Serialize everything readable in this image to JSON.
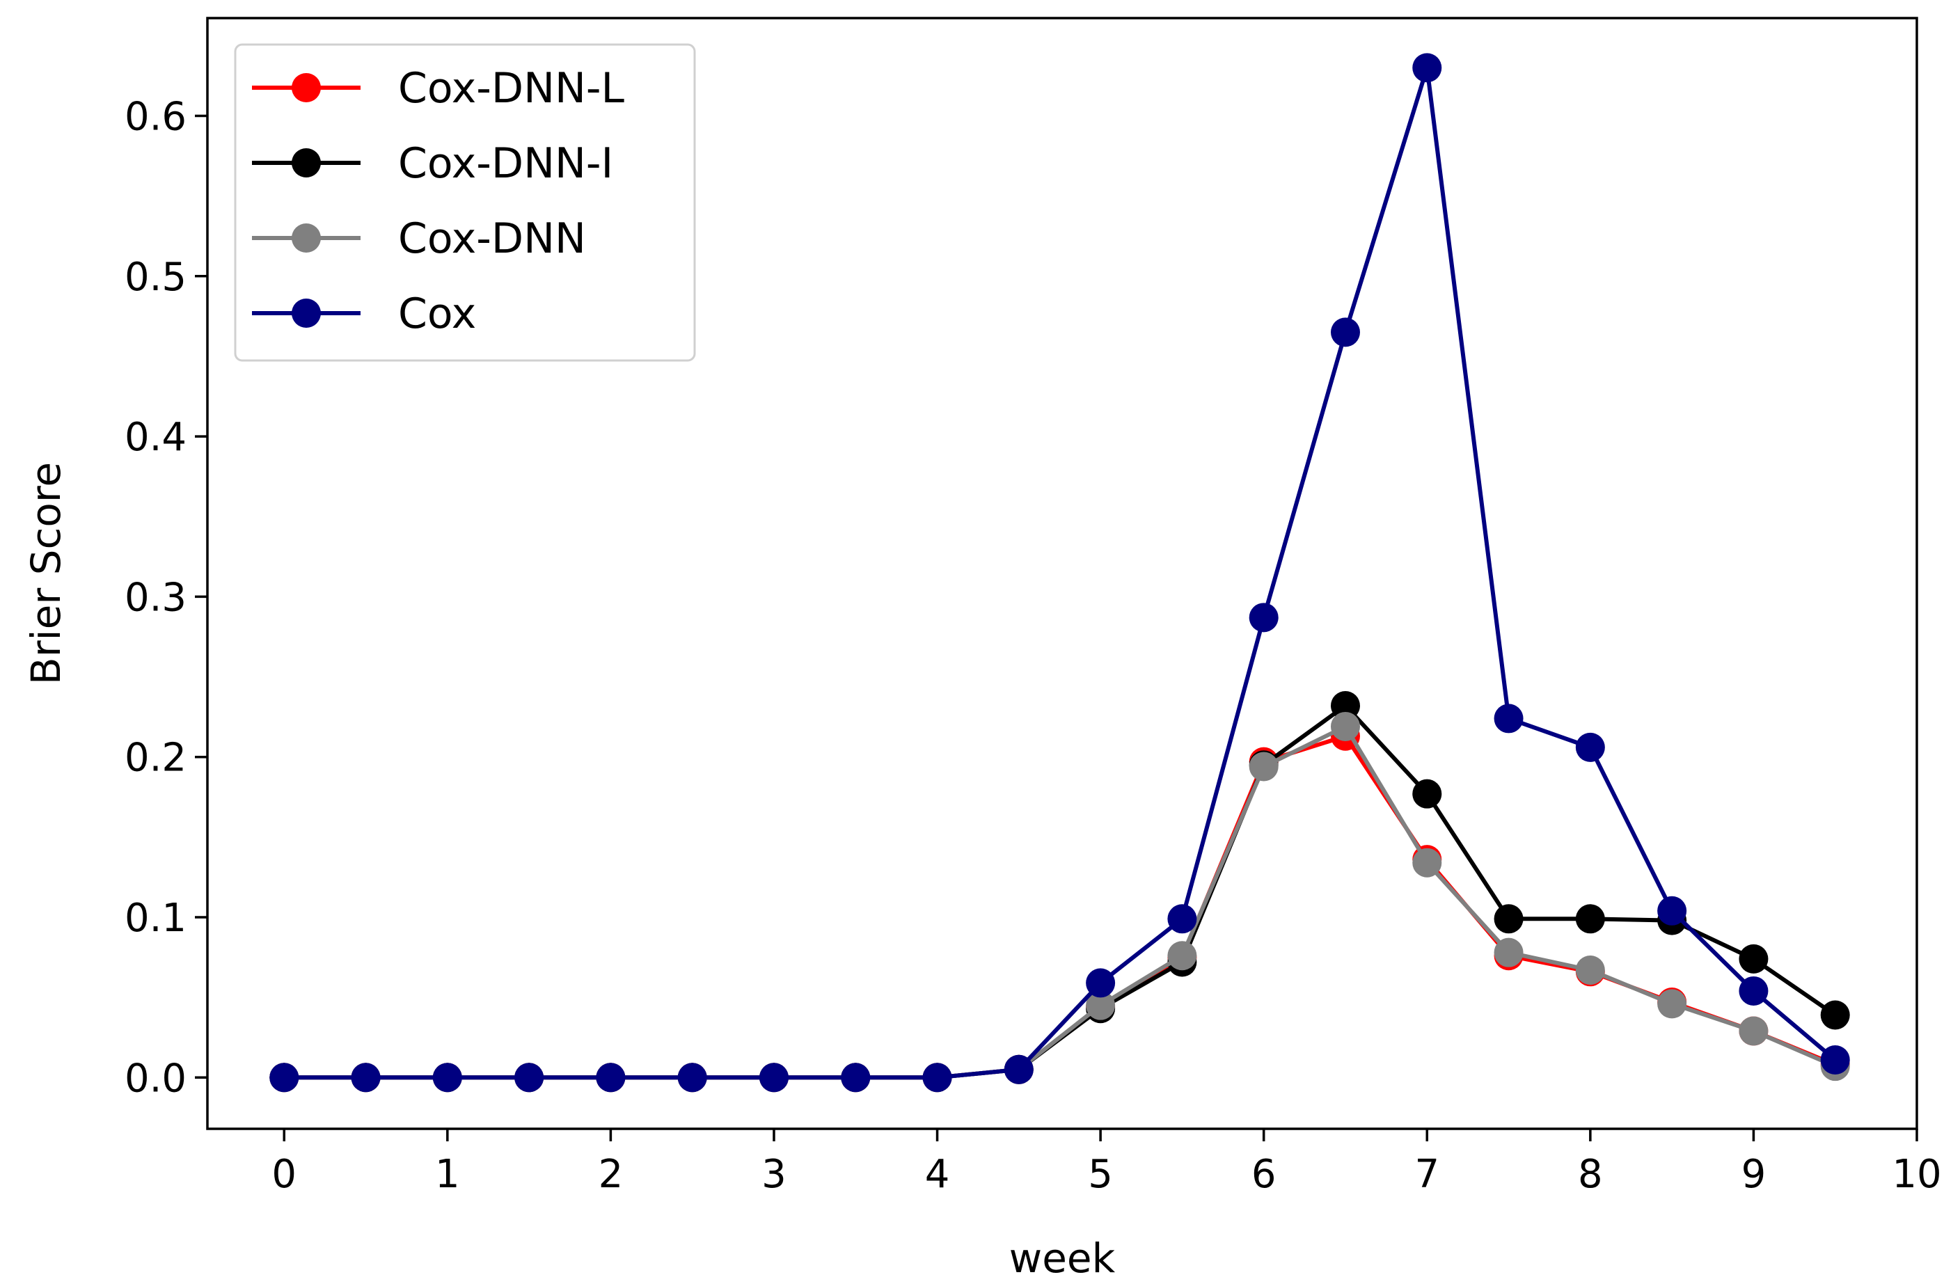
{
  "chart_data": {
    "type": "line",
    "title": "",
    "xlabel": "week",
    "ylabel": "Brier Score",
    "xlim": [
      -0.47,
      10.0
    ],
    "ylim": [
      -0.032,
      0.661
    ],
    "xticks": [
      0,
      1,
      2,
      3,
      4,
      5,
      6,
      7,
      8,
      9,
      10
    ],
    "xtick_labels": [
      "0",
      "1",
      "2",
      "3",
      "4",
      "5",
      "6",
      "7",
      "8",
      "9",
      "10"
    ],
    "yticks": [
      0.0,
      0.1,
      0.2,
      0.3,
      0.4,
      0.5,
      0.6
    ],
    "ytick_labels": [
      "0.0",
      "0.1",
      "0.2",
      "0.3",
      "0.4",
      "0.5",
      "0.6"
    ],
    "grid": false,
    "legend_position": "top-left",
    "x": [
      0,
      0.5,
      1,
      1.5,
      2,
      2.5,
      3,
      3.5,
      4,
      4.5,
      5,
      5.5,
      6,
      6.5,
      7,
      7.5,
      8,
      8.5,
      9,
      9.5
    ],
    "series": [
      {
        "name": "Cox-DNN-L",
        "color": "#ff0000",
        "values": [
          0,
          0,
          0,
          0,
          0,
          0,
          0,
          0,
          0,
          0.005,
          0.044,
          0.075,
          0.197,
          0.213,
          0.136,
          0.076,
          0.066,
          0.047,
          0.029,
          0.008
        ]
      },
      {
        "name": "Cox-DNN-I",
        "color": "#000000",
        "values": [
          0,
          0,
          0,
          0,
          0,
          0,
          0,
          0,
          0,
          0.005,
          0.043,
          0.072,
          0.195,
          0.232,
          0.177,
          0.099,
          0.099,
          0.098,
          0.074,
          0.039
        ]
      },
      {
        "name": "Cox-DNN",
        "color": "#808080",
        "values": [
          0,
          0,
          0,
          0,
          0,
          0,
          0,
          0,
          0,
          0.005,
          0.045,
          0.076,
          0.194,
          0.219,
          0.134,
          0.078,
          0.067,
          0.046,
          0.029,
          0.007
        ]
      },
      {
        "name": "Cox",
        "color": "#000080",
        "values": [
          0,
          0,
          0,
          0,
          0,
          0,
          0,
          0,
          0,
          0.005,
          0.059,
          0.099,
          0.287,
          0.465,
          0.63,
          0.224,
          0.206,
          0.104,
          0.054,
          0.011
        ]
      }
    ]
  }
}
